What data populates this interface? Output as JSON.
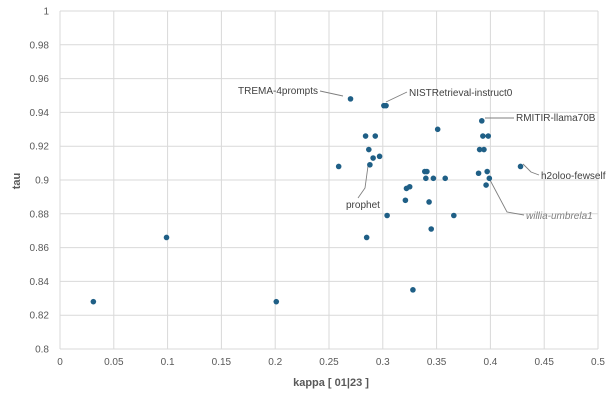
{
  "chart_data": {
    "type": "scatter",
    "xlabel": "kappa [ 01|23 ]",
    "ylabel": "tau",
    "xlim": [
      0,
      0.5
    ],
    "ylim": [
      0.8,
      1.0
    ],
    "xticks": [
      "0",
      "0.05",
      "0.1",
      "0.15",
      "0.2",
      "0.25",
      "0.3",
      "0.35",
      "0.4",
      "0.45",
      "0.5"
    ],
    "yticks": [
      "0.8",
      "0.82",
      "0.84",
      "0.86",
      "0.88",
      "0.9",
      "0.92",
      "0.94",
      "0.96",
      "0.98",
      "1"
    ],
    "grid": true,
    "marker_color": "#1f5f86",
    "points": [
      {
        "x": 0.031,
        "y": 0.828
      },
      {
        "x": 0.099,
        "y": 0.866
      },
      {
        "x": 0.201,
        "y": 0.828
      },
      {
        "x": 0.259,
        "y": 0.908
      },
      {
        "x": 0.27,
        "y": 0.948
      },
      {
        "x": 0.284,
        "y": 0.926
      },
      {
        "x": 0.285,
        "y": 0.866
      },
      {
        "x": 0.287,
        "y": 0.918
      },
      {
        "x": 0.288,
        "y": 0.909
      },
      {
        "x": 0.291,
        "y": 0.913
      },
      {
        "x": 0.293,
        "y": 0.926
      },
      {
        "x": 0.297,
        "y": 0.914
      },
      {
        "x": 0.301,
        "y": 0.944
      },
      {
        "x": 0.303,
        "y": 0.944
      },
      {
        "x": 0.304,
        "y": 0.879
      },
      {
        "x": 0.321,
        "y": 0.888
      },
      {
        "x": 0.322,
        "y": 0.895
      },
      {
        "x": 0.325,
        "y": 0.896
      },
      {
        "x": 0.328,
        "y": 0.835
      },
      {
        "x": 0.339,
        "y": 0.905
      },
      {
        "x": 0.34,
        "y": 0.901
      },
      {
        "x": 0.341,
        "y": 0.905
      },
      {
        "x": 0.343,
        "y": 0.887
      },
      {
        "x": 0.345,
        "y": 0.871
      },
      {
        "x": 0.347,
        "y": 0.901
      },
      {
        "x": 0.351,
        "y": 0.93
      },
      {
        "x": 0.358,
        "y": 0.901
      },
      {
        "x": 0.366,
        "y": 0.879
      },
      {
        "x": 0.389,
        "y": 0.904
      },
      {
        "x": 0.39,
        "y": 0.918
      },
      {
        "x": 0.392,
        "y": 0.935
      },
      {
        "x": 0.393,
        "y": 0.926
      },
      {
        "x": 0.394,
        "y": 0.918
      },
      {
        "x": 0.396,
        "y": 0.897
      },
      {
        "x": 0.397,
        "y": 0.905
      },
      {
        "x": 0.398,
        "y": 0.926
      },
      {
        "x": 0.399,
        "y": 0.901
      },
      {
        "x": 0.428,
        "y": 0.908
      }
    ],
    "annotations": [
      {
        "label": "TREMA-4prompts",
        "x": 0.27,
        "y": 0.948,
        "italic": false
      },
      {
        "label": "NISTRetrieval-instruct0",
        "x": 0.303,
        "y": 0.944,
        "italic": false
      },
      {
        "label": "RMITIR-llama70B",
        "x": 0.392,
        "y": 0.935,
        "italic": false
      },
      {
        "label": "h2oloo-fewself",
        "x": 0.428,
        "y": 0.908,
        "italic": false
      },
      {
        "label": "prophet",
        "x": 0.288,
        "y": 0.909,
        "italic": false
      },
      {
        "label": "willia-umbrela1",
        "x": 0.399,
        "y": 0.901,
        "italic": true
      }
    ]
  }
}
